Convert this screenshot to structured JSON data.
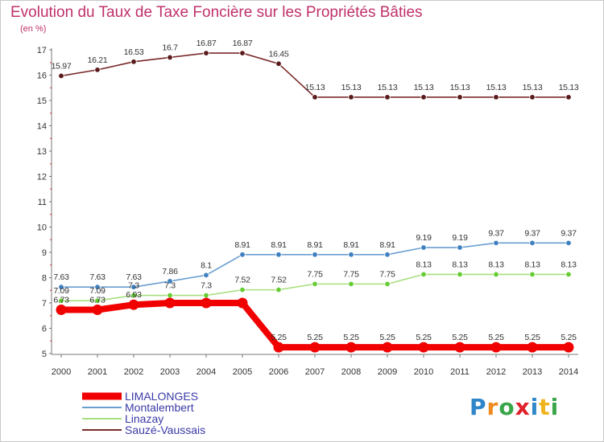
{
  "title": "Evolution du Taux de Taxe Foncière sur les Propriétés Bâties",
  "unit": "(en %)",
  "logo": {
    "text": "Proxiti",
    "letter_colors": [
      "#2f86c8",
      "#f08a1c",
      "#3aa64a",
      "#e0202a",
      "#2f86c8",
      "#f0b41c",
      "#3aa64a"
    ]
  },
  "chart_data": {
    "type": "line",
    "title": "Evolution du Taux de Taxe Foncière sur les Propriétés Bâties",
    "ylabel": "(en %)",
    "xlabel": "",
    "ylim": [
      5,
      17
    ],
    "yticks": [
      5,
      6,
      7,
      8,
      9,
      10,
      11,
      12,
      13,
      14,
      15,
      16,
      17
    ],
    "grid": false,
    "legend_position": "bottom-left",
    "x": [
      "2000",
      "2001",
      "2002",
      "2003",
      "2004",
      "2005",
      "2006",
      "2007",
      "2008",
      "2009",
      "2010",
      "2011",
      "2012",
      "2013",
      "2014"
    ],
    "series": [
      {
        "name": "LIMALONGES",
        "color": "#f10000",
        "emphasis": true,
        "values": [
          6.73,
          6.73,
          6.93,
          7.0,
          7.0,
          7.0,
          5.25,
          5.25,
          5.25,
          5.25,
          5.25,
          5.25,
          5.25,
          5.25,
          5.25
        ],
        "labels": [
          "6.73",
          "6.73",
          "6.93",
          "",
          "",
          "",
          "5.25",
          "5.25",
          "5.25",
          "5.25",
          "5.25",
          "5.25",
          "5.25",
          "5.25",
          "5.25"
        ]
      },
      {
        "name": "Montalembert",
        "color": "#6a9fd0",
        "point_color": "#3f80c0",
        "values": [
          7.63,
          7.63,
          7.63,
          7.86,
          8.1,
          8.91,
          8.91,
          8.91,
          8.91,
          8.91,
          9.19,
          9.19,
          9.37,
          9.37,
          9.37
        ],
        "labels": [
          "7.63",
          "7.63",
          "7.63",
          "7.86",
          "8.1",
          "8.91",
          "8.91",
          "8.91",
          "8.91",
          "8.91",
          "9.19",
          "9.19",
          "9.37",
          "9.37",
          "9.37"
        ]
      },
      {
        "name": "Linazay",
        "color": "#a6df7e",
        "point_color": "#66cc33",
        "values": [
          7.09,
          7.09,
          7.3,
          7.3,
          7.3,
          7.52,
          7.52,
          7.75,
          7.75,
          7.75,
          8.13,
          8.13,
          8.13,
          8.13,
          8.13
        ],
        "labels": [
          "7.09",
          "7.09",
          "7.3",
          "7.3",
          "7.3",
          "7.52",
          "7.52",
          "7.75",
          "7.75",
          "7.75",
          "8.13",
          "8.13",
          "8.13",
          "8.13",
          "8.13"
        ]
      },
      {
        "name": "Sauzé-Vaussais",
        "color": "#7a2a2a",
        "point_color": "#5a1a1a",
        "values": [
          15.97,
          16.21,
          16.53,
          16.7,
          16.87,
          16.87,
          16.45,
          15.13,
          15.13,
          15.13,
          15.13,
          15.13,
          15.13,
          15.13,
          15.13
        ],
        "labels": [
          "15.97",
          "16.21",
          "16.53",
          "16.7",
          "16.87",
          "16.87",
          "16.45",
          "15.13",
          "15.13",
          "15.13",
          "15.13",
          "15.13",
          "15.13",
          "15.13",
          "15.13"
        ]
      }
    ]
  }
}
